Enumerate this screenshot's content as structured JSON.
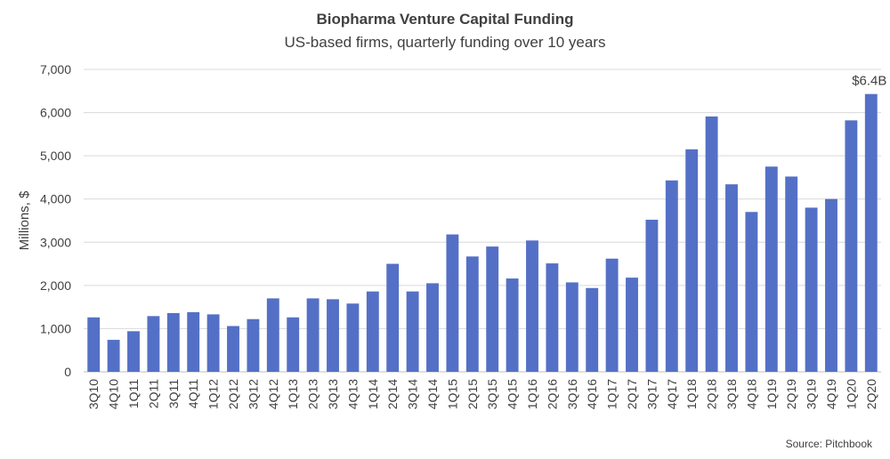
{
  "chart_data": {
    "type": "bar",
    "title": "Biopharma Venture Capital Funding",
    "subtitle": "US-based firms, quarterly funding over 10 years",
    "ylabel": "Millions, $",
    "xlabel": "",
    "ylim": [
      0,
      7000
    ],
    "yticks": [
      0,
      1000,
      2000,
      3000,
      4000,
      5000,
      6000,
      7000
    ],
    "ytick_labels": [
      "0",
      "1,000",
      "2,000",
      "3,000",
      "4,000",
      "5,000",
      "6,000",
      "7,000"
    ],
    "grid": true,
    "bar_color": "#5470C6",
    "categories": [
      "3Q10",
      "4Q10",
      "1Q11",
      "2Q11",
      "3Q11",
      "4Q11",
      "1Q12",
      "2Q12",
      "3Q12",
      "4Q12",
      "1Q13",
      "2Q13",
      "3Q13",
      "4Q13",
      "1Q14",
      "2Q14",
      "3Q14",
      "4Q14",
      "1Q15",
      "2Q15",
      "3Q15",
      "4Q15",
      "1Q16",
      "2Q16",
      "3Q16",
      "4Q16",
      "1Q17",
      "2Q17",
      "3Q17",
      "4Q17",
      "1Q18",
      "2Q18",
      "3Q18",
      "4Q18",
      "1Q19",
      "2Q19",
      "3Q19",
      "4Q19",
      "1Q20",
      "2Q20"
    ],
    "values": [
      1260,
      740,
      940,
      1290,
      1360,
      1380,
      1330,
      1060,
      1220,
      1700,
      1260,
      1700,
      1680,
      1580,
      1860,
      2500,
      1860,
      2050,
      3180,
      2670,
      2900,
      2160,
      3040,
      2510,
      2070,
      1940,
      2620,
      2180,
      3520,
      4430,
      5150,
      5910,
      4340,
      3700,
      4750,
      4520,
      3800,
      4000,
      5820,
      6430
    ],
    "annotation": "$6.4B",
    "source": "Source: Pitchbook"
  }
}
